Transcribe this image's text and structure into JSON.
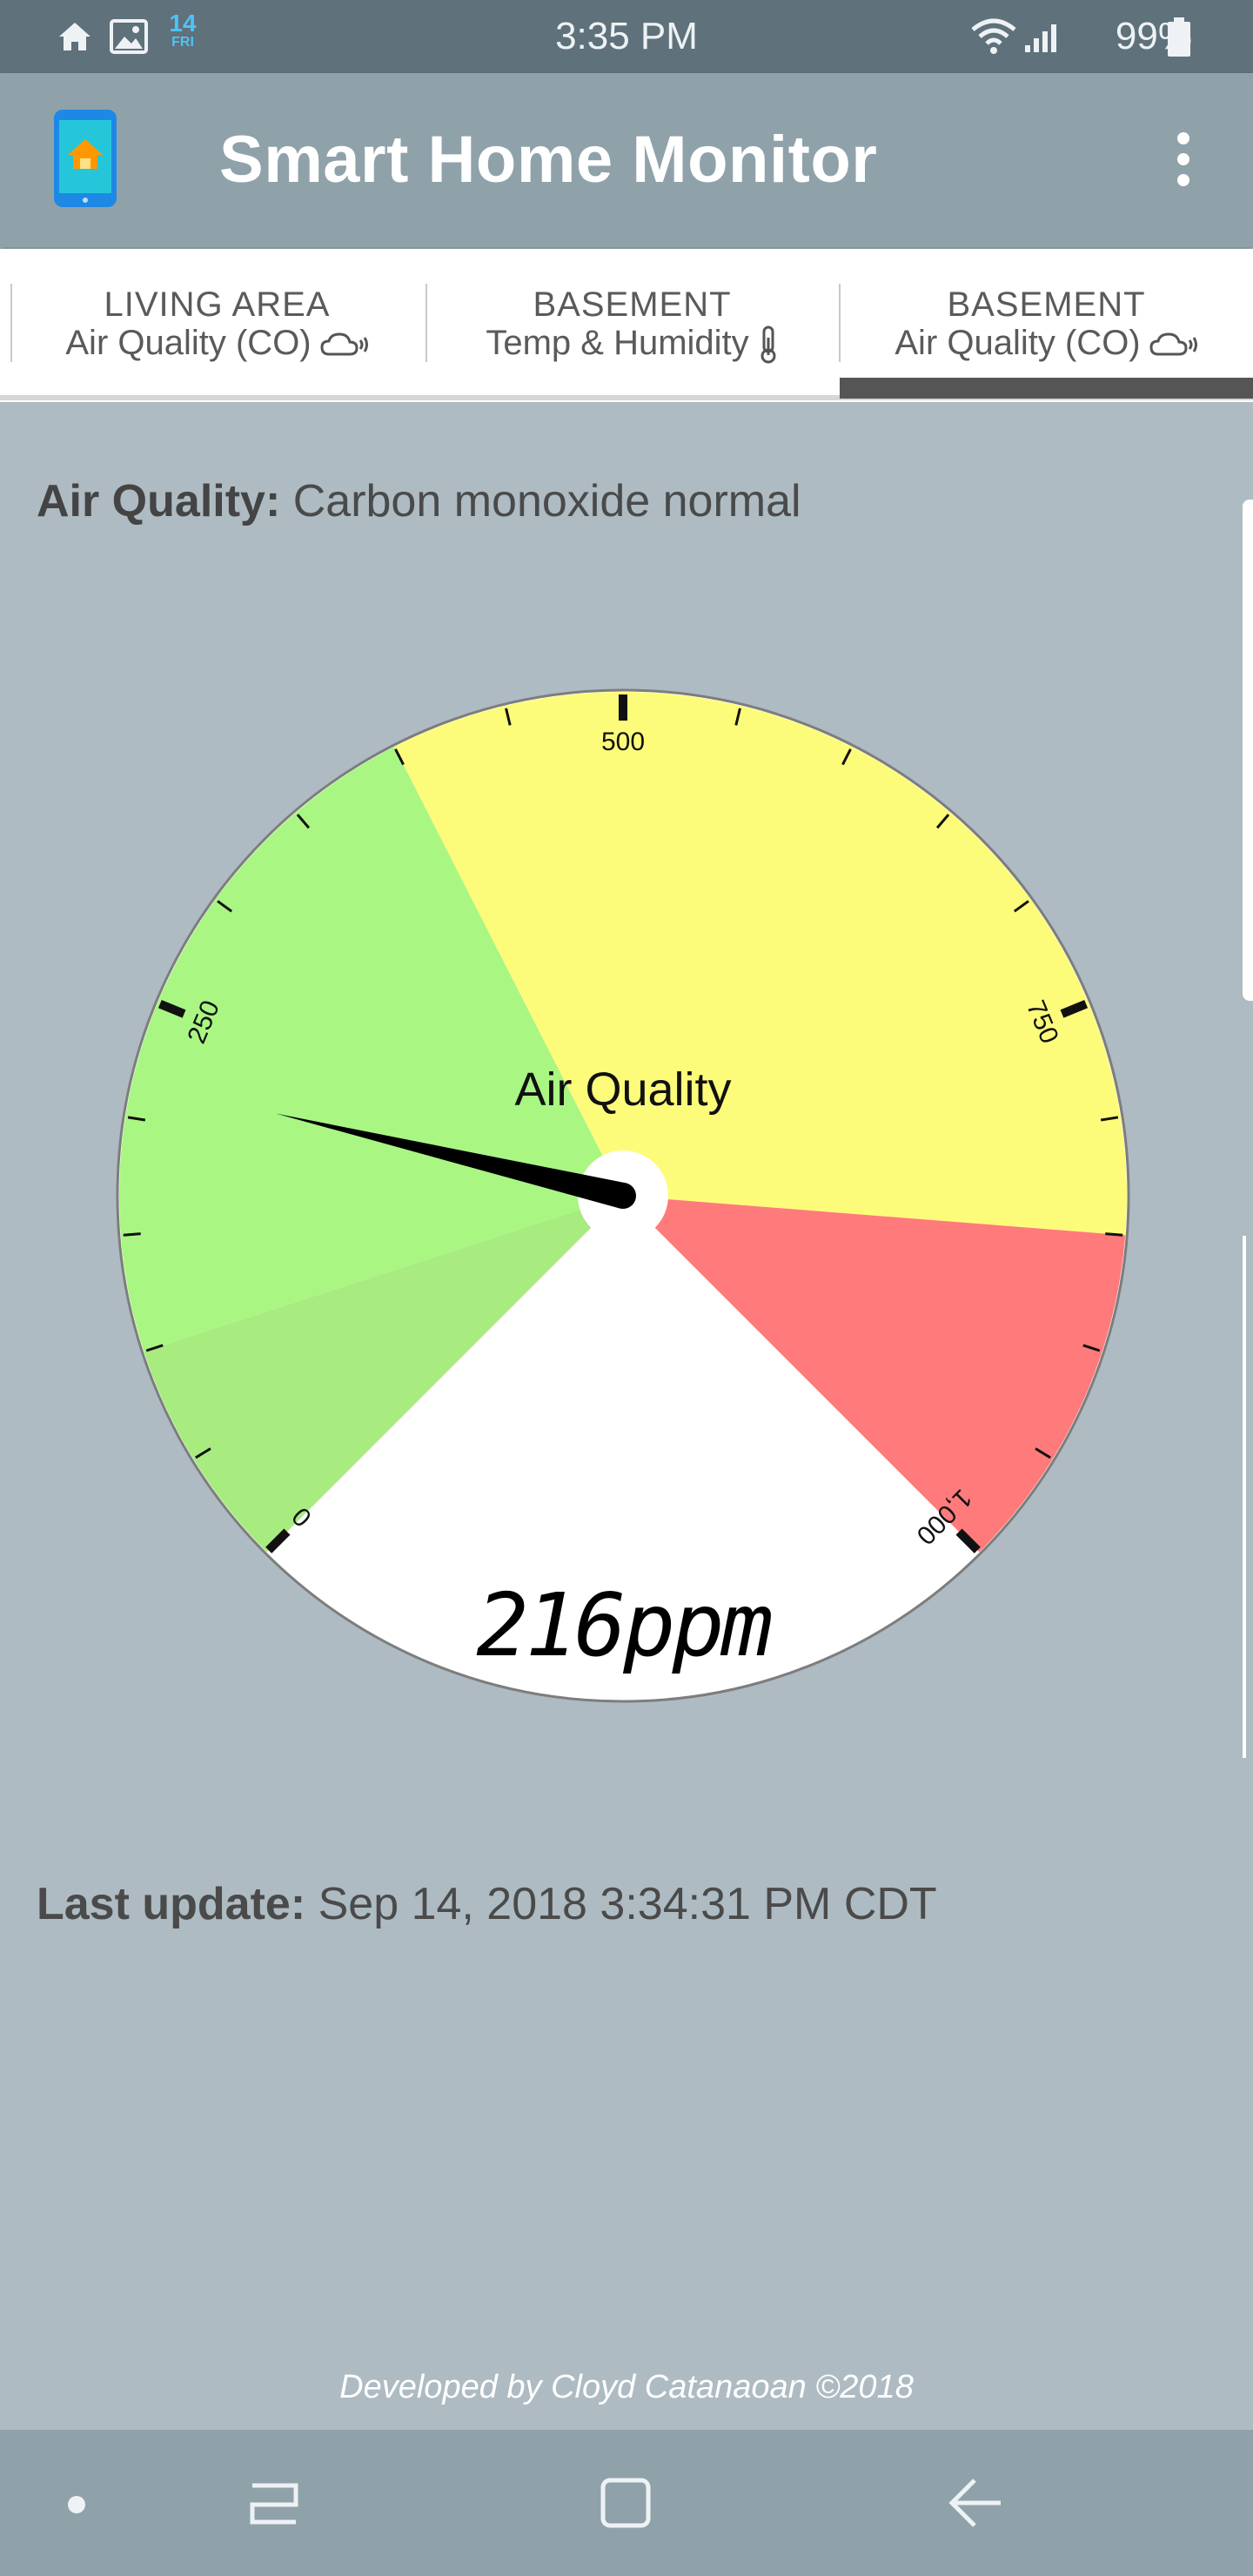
{
  "status_bar": {
    "date_day": "14",
    "date_weekday": "FRI",
    "time": "3:35 PM",
    "battery": "99%",
    "icons": [
      "home-icon",
      "image-icon",
      "calendar-date-icon",
      "wifi-icon",
      "signal-icon",
      "battery-icon"
    ]
  },
  "app_bar": {
    "title": "Smart Home Monitor",
    "logo_icon": "phone-home-icon",
    "menu_icon": "more-vertical-icon"
  },
  "tabs": [
    {
      "location": "LIVING AREA",
      "sensor": "Air Quality (CO)",
      "icon": "cloud-wind-icon",
      "selected": false
    },
    {
      "location": "BASEMENT",
      "sensor": "Temp & Humidity",
      "icon": "thermometer-icon",
      "selected": false
    },
    {
      "location": "BASEMENT",
      "sensor": "Air Quality (CO)",
      "icon": "cloud-wind-icon",
      "selected": true
    }
  ],
  "status": {
    "label": "Air Quality:",
    "value": "Carbon monoxide normal"
  },
  "gauge": {
    "title": "Air Quality",
    "min": 0,
    "max": 1000,
    "major_ticks": [
      0,
      250,
      500,
      750,
      1000
    ],
    "major_labels": [
      "0",
      "250",
      "500",
      "750",
      "1,000"
    ],
    "minor_step": 50,
    "value": 216,
    "value_text": "216",
    "unit": "ppm",
    "zones": [
      {
        "from": 0,
        "to": 100,
        "color": "#a8ec80"
      },
      {
        "from": 100,
        "to": 400,
        "color": "#a9f683"
      },
      {
        "from": 400,
        "to": 850,
        "color": "#fdfc7a"
      },
      {
        "from": 850,
        "to": 1000,
        "color": "#ff7a7a"
      }
    ]
  },
  "last_update": {
    "label": "Last update:",
    "value": "Sep 14, 2018 3:34:31 PM CDT"
  },
  "footer": {
    "credit": "Developed by Cloyd Catanaoan ©2018"
  },
  "nav_bar": {
    "items": [
      "dot-icon",
      "recent-apps-icon",
      "home-button-icon",
      "back-arrow-icon"
    ]
  }
}
